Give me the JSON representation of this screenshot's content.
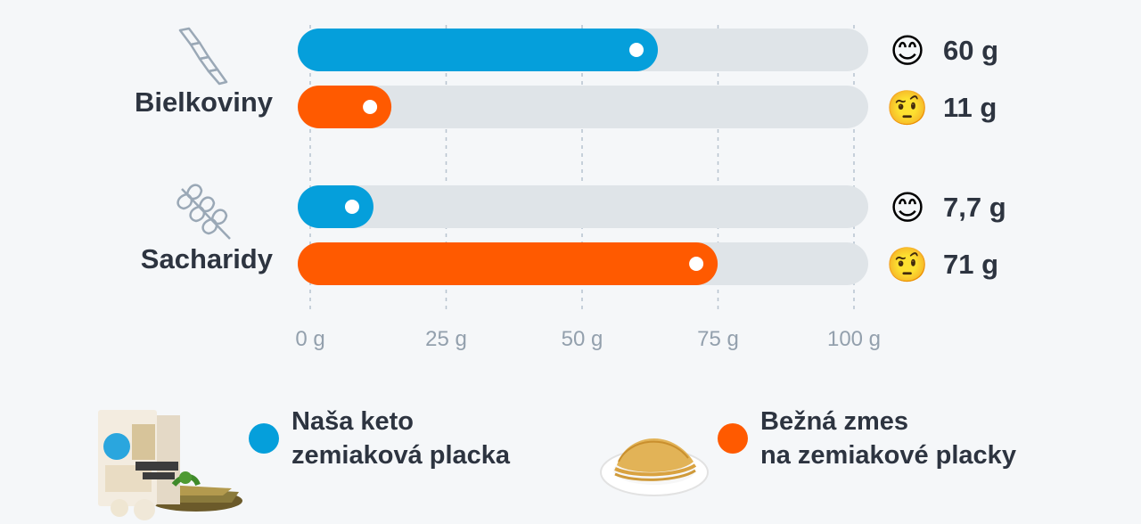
{
  "chart_data": {
    "type": "bar",
    "orientation": "horizontal",
    "xlim": [
      0,
      100
    ],
    "ticks": [
      {
        "value": 0,
        "label": "0 g"
      },
      {
        "value": 25,
        "label": "25 g"
      },
      {
        "value": 50,
        "label": "50 g"
      },
      {
        "value": 75,
        "label": "75 g"
      },
      {
        "value": 100,
        "label": "100 g"
      }
    ],
    "groups": [
      {
        "label": "Bielkoviny",
        "icon": "protein-icon",
        "bars": [
          {
            "series": 0,
            "value": 60,
            "label": "60 g",
            "emoji": "😊",
            "emoji_name": "smiling-face-icon"
          },
          {
            "series": 1,
            "value": 11,
            "label": "11 g",
            "emoji": "🤨",
            "emoji_name": "raised-eyebrow-face-icon"
          }
        ]
      },
      {
        "label": "Sacharidy",
        "icon": "wheat-icon",
        "bars": [
          {
            "series": 0,
            "value": 7.7,
            "label": "7,7 g",
            "emoji": "😊",
            "emoji_name": "smiling-face-icon"
          },
          {
            "series": 1,
            "value": 71,
            "label": "71 g",
            "emoji": "🤨",
            "emoji_name": "raised-eyebrow-face-icon"
          }
        ]
      }
    ],
    "series": [
      {
        "name": "Naša keto zemiaková placka",
        "color": "#059fdb"
      },
      {
        "name": "Bežná zmes na zemiakové placky",
        "color": "#ff5a00"
      }
    ],
    "grid": true
  },
  "colors": {
    "track": "#dfe4e8",
    "grid": "#b7c3cf",
    "tick_text": "#93a0ad",
    "text": "#2d3440",
    "icon": "#9aa8b6"
  },
  "legend": [
    {
      "line1": "Naša keto",
      "line2": "zemiaková placka",
      "image": "keto-product-box-image"
    },
    {
      "line1": "Bežná zmes",
      "line2": "na zemiakové placky",
      "image": "pancake-plate-image"
    }
  ]
}
